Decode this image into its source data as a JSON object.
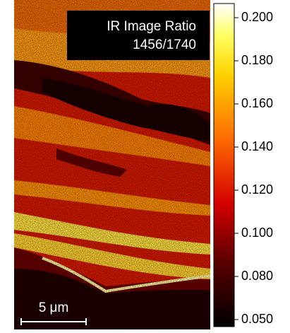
{
  "image": {
    "title_lines": [
      "IR Image Ratio",
      "1456/1740"
    ],
    "scale_bar": "5 μm"
  },
  "colorbar": {
    "ticks": [
      {
        "value": 0.2,
        "label": "0.200"
      },
      {
        "value": 0.18,
        "label": "0.180"
      },
      {
        "value": 0.16,
        "label": "0.160"
      },
      {
        "value": 0.14,
        "label": "0.140"
      },
      {
        "value": 0.12,
        "label": "0.120"
      },
      {
        "value": 0.1,
        "label": "0.100"
      },
      {
        "value": 0.08,
        "label": "0.080"
      },
      {
        "value": 0.05,
        "label": "0.050"
      }
    ]
  }
}
